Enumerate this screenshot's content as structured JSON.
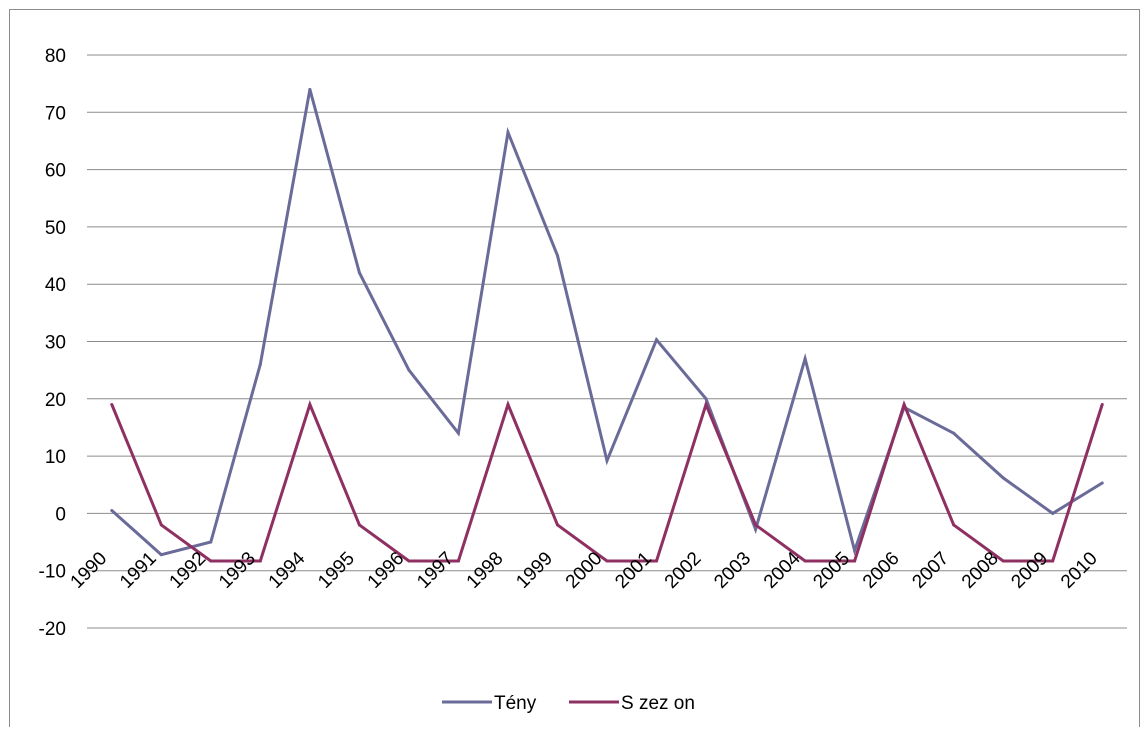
{
  "chart_data": {
    "type": "line",
    "categories": [
      "1990",
      "1991",
      "1992",
      "1993",
      "1994",
      "1995",
      "1996",
      "1997",
      "1998",
      "1999",
      "2000",
      "2001",
      "2002",
      "2003",
      "2004",
      "2005",
      "2006",
      "2007",
      "2008",
      "2009",
      "2010"
    ],
    "ylim": [
      -20,
      80
    ],
    "yticks": [
      -20,
      -10,
      0,
      10,
      20,
      30,
      40,
      50,
      60,
      70,
      80
    ],
    "grid": true,
    "legend_position": "bottom",
    "series": [
      {
        "name": "Tény",
        "color": "#6b6b9a",
        "values": [
          0.5,
          -7.2,
          -5,
          26,
          74,
          42,
          25,
          14,
          66.5,
          45,
          9.2,
          30.3,
          20,
          -2.8,
          27,
          -6.5,
          18.5,
          14,
          6.2,
          0,
          5.3
        ]
      },
      {
        "name": "S zez on",
        "color": "#8e3062",
        "values": [
          19,
          -2,
          -8.3,
          -8.3,
          19,
          -2,
          -8.3,
          -8.3,
          19,
          -2,
          -8.3,
          -8.3,
          19,
          -2,
          -8.3,
          -8.3,
          19,
          -2,
          -8.3,
          -8.3,
          19
        ]
      }
    ]
  }
}
